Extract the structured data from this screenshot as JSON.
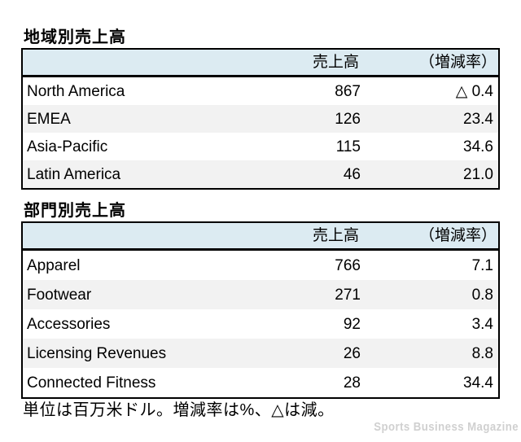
{
  "chart_data": [
    {
      "type": "table",
      "title": "地域別売上高",
      "columns": [
        "",
        "売上高",
        "（増減率）"
      ],
      "rows": [
        {
          "label": "North America",
          "sales": 867,
          "change_pct": -0.4,
          "change_display": "△ 0.4"
        },
        {
          "label": "EMEA",
          "sales": 126,
          "change_pct": 23.4,
          "change_display": "23.4"
        },
        {
          "label": "Asia-Pacific",
          "sales": 115,
          "change_pct": 34.6,
          "change_display": "34.6"
        },
        {
          "label": "Latin America",
          "sales": 46,
          "change_pct": 21.0,
          "change_display": "21.0"
        }
      ]
    },
    {
      "type": "table",
      "title": "部門別売上高",
      "columns": [
        "",
        "売上高",
        "（増減率）"
      ],
      "rows": [
        {
          "label": "Apparel",
          "sales": 766,
          "change_pct": 7.1,
          "change_display": "7.1"
        },
        {
          "label": "Footwear",
          "sales": 271,
          "change_pct": 0.8,
          "change_display": "0.8"
        },
        {
          "label": "Accessories",
          "sales": 92,
          "change_pct": 3.4,
          "change_display": "3.4"
        },
        {
          "label": "Licensing Revenues",
          "sales": 26,
          "change_pct": 8.8,
          "change_display": "8.8"
        },
        {
          "label": "Connected Fitness",
          "sales": 28,
          "change_pct": 34.4,
          "change_display": "34.4"
        }
      ]
    }
  ],
  "footnote": "単位は百万米ドル。増減率は%、△は減。",
  "watermark": "Sports Business Magazine",
  "colors": {
    "header_bg": "#dcebf2",
    "row_alt_bg": "#f2f2f2",
    "border": "#000000",
    "watermark_color": "#d0d0d0"
  }
}
